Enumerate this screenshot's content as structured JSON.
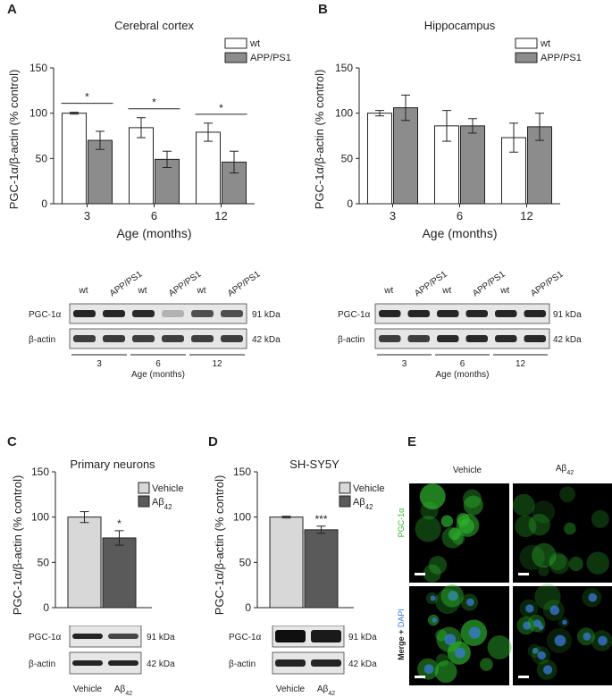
{
  "panels": {
    "A": "A",
    "B": "B",
    "C": "C",
    "D": "D",
    "E": "E"
  },
  "colors": {
    "wt": "#ffffff",
    "app": "#8c8c8c",
    "vehicle": "#d8d8d8",
    "abeta": "#5a5a5a",
    "stroke": "#222222",
    "pgc_green": "#2fb82f",
    "dapi_blue": "#3a79d8"
  },
  "chart_data": [
    {
      "id": "A",
      "type": "bar",
      "title": "Cerebral cortex",
      "xlabel": "Age (months)",
      "ylabel": "PGC-1α/β-actin (% control)",
      "categories": [
        "3",
        "6",
        "12"
      ],
      "ylim": [
        0,
        150
      ],
      "yticks": [
        0,
        50,
        100,
        150
      ],
      "series": [
        {
          "name": "wt",
          "values": [
            100,
            84,
            79
          ],
          "errors": [
            1,
            11,
            10
          ]
        },
        {
          "name": "APP/PS1",
          "values": [
            70,
            49,
            46
          ],
          "errors": [
            10,
            9,
            12
          ]
        }
      ],
      "significance": [
        "*",
        "*",
        "*"
      ],
      "legend": "top-right"
    },
    {
      "id": "B",
      "type": "bar",
      "title": "Hippocampus",
      "xlabel": "Age (months)",
      "ylabel": "PGC-1α/β-actin (% control)",
      "categories": [
        "3",
        "6",
        "12"
      ],
      "ylim": [
        0,
        150
      ],
      "yticks": [
        0,
        50,
        100,
        150
      ],
      "series": [
        {
          "name": "wt",
          "values": [
            100,
            86,
            73
          ],
          "errors": [
            3,
            17,
            16
          ]
        },
        {
          "name": "APP/PS1",
          "values": [
            106,
            86,
            85
          ],
          "errors": [
            14,
            8,
            15
          ]
        }
      ],
      "significance": [
        "",
        "",
        ""
      ],
      "legend": "top-right"
    },
    {
      "id": "C",
      "type": "bar",
      "title": "Primary neurons",
      "ylabel": "PGC-1α/β-actin (% control)",
      "categories": [
        "Vehicle",
        "Aβ"
      ],
      "ylim": [
        0,
        150
      ],
      "yticks": [
        0,
        50,
        100,
        150
      ],
      "values": [
        100,
        77
      ],
      "errors": [
        6,
        8
      ],
      "significance": [
        "",
        "*"
      ],
      "legend": "top-right"
    },
    {
      "id": "D",
      "type": "bar",
      "title": "SH-SY5Y",
      "ylabel": "PGC-1α/β-actin (% control)",
      "categories": [
        "Vehicle",
        "Aβ"
      ],
      "ylim": [
        0,
        150
      ],
      "yticks": [
        0,
        50,
        100,
        150
      ],
      "values": [
        100,
        86
      ],
      "errors": [
        1,
        4
      ],
      "significance": [
        "",
        "***"
      ],
      "legend": "top-right"
    }
  ],
  "blots_AB": {
    "lanes": [
      "wt",
      "APP/PS1",
      "wt",
      "APP/PS1",
      "wt",
      "APP/PS1"
    ],
    "rows": [
      "PGC-1α",
      "β-actin"
    ],
    "kda": [
      "91 kDa",
      "42 kDa"
    ],
    "ages": [
      "3",
      "6",
      "12"
    ],
    "age_label": "Age (months)"
  },
  "blots_CD": {
    "rows": [
      "PGC-1α",
      "β-actin"
    ],
    "kda": [
      "91 kDa",
      "42 kDa"
    ],
    "lanes": [
      "Vehicle",
      "Aβ"
    ],
    "subscript": "42"
  },
  "panel_E": {
    "cols": [
      "Vehicle",
      "Aβ"
    ],
    "subscript": "42",
    "row1": "PGC-1α",
    "row2a": "Merge + ",
    "row2b": "DAPI"
  }
}
